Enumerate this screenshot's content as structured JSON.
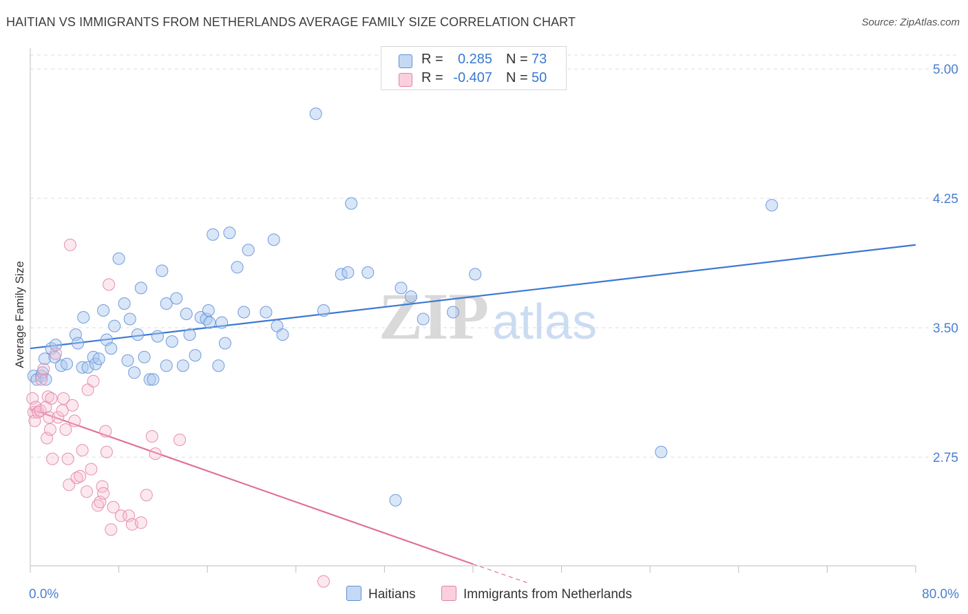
{
  "title": "HAITIAN VS IMMIGRANTS FROM NETHERLANDS AVERAGE FAMILY SIZE CORRELATION CHART",
  "source": "Source: ZipAtlas.com",
  "watermark": {
    "zip": "ZIP",
    "atlas": "atlas"
  },
  "legend": {
    "r_label": "R =",
    "n_label": "N =",
    "series": [
      {
        "r": "0.285",
        "n": "73",
        "fill": "#aac8f0",
        "stroke": "#5b8fd6"
      },
      {
        "r": "-0.407",
        "n": "50",
        "fill": "#f7bcd0",
        "stroke": "#e07fa2"
      }
    ]
  },
  "bottom_legend": [
    "Haitians",
    "Immigrants from Netherlands"
  ],
  "chart_data": {
    "type": "scatter",
    "title": "HAITIAN VS IMMIGRANTS FROM NETHERLANDS AVERAGE FAMILY SIZE CORRELATION CHART",
    "xlabel": "",
    "ylabel": "Average Family Size",
    "xlim": [
      0,
      80
    ],
    "ylim": [
      2.12,
      5.12
    ],
    "x_tick_labels": [
      "0.0%",
      "80.0%"
    ],
    "y_ticks": [
      2.75,
      3.5,
      4.25,
      5.0
    ],
    "y_tick_labels": [
      "2.75",
      "3.50",
      "4.25",
      "5.00"
    ],
    "grid": "horizontal dashed",
    "colors": {
      "haitians": "#3a78d2",
      "netherlands": "#e0709a",
      "tick_text": "#4a7fcf"
    },
    "series": [
      {
        "name": "Haitians",
        "r": 0.285,
        "n": 73,
        "trend": {
          "x": [
            0,
            80
          ],
          "y": [
            3.38,
            3.98
          ]
        },
        "points": [
          [
            0.3,
            3.22
          ],
          [
            0.6,
            3.2
          ],
          [
            1.0,
            3.22
          ],
          [
            1.1,
            3.24
          ],
          [
            1.3,
            3.32
          ],
          [
            1.4,
            3.2
          ],
          [
            1.9,
            3.38
          ],
          [
            2.2,
            3.33
          ],
          [
            2.3,
            3.4
          ],
          [
            2.8,
            3.28
          ],
          [
            3.3,
            3.29
          ],
          [
            4.1,
            3.46
          ],
          [
            4.3,
            3.41
          ],
          [
            4.7,
            3.27
          ],
          [
            4.8,
            3.56
          ],
          [
            5.2,
            3.27
          ],
          [
            5.7,
            3.33
          ],
          [
            5.9,
            3.29
          ],
          [
            6.2,
            3.32
          ],
          [
            6.6,
            3.6
          ],
          [
            6.9,
            3.43
          ],
          [
            7.3,
            3.38
          ],
          [
            7.6,
            3.51
          ],
          [
            8.0,
            3.9
          ],
          [
            8.5,
            3.64
          ],
          [
            8.8,
            3.31
          ],
          [
            9.0,
            3.55
          ],
          [
            9.4,
            3.24
          ],
          [
            9.7,
            3.46
          ],
          [
            10.0,
            3.73
          ],
          [
            10.3,
            3.33
          ],
          [
            10.8,
            3.2
          ],
          [
            11.1,
            3.2
          ],
          [
            11.5,
            3.45
          ],
          [
            11.9,
            3.83
          ],
          [
            12.3,
            3.64
          ],
          [
            12.3,
            3.28
          ],
          [
            12.8,
            3.42
          ],
          [
            13.2,
            3.67
          ],
          [
            13.8,
            3.28
          ],
          [
            14.1,
            3.58
          ],
          [
            14.4,
            3.46
          ],
          [
            14.9,
            3.34
          ],
          [
            15.4,
            3.56
          ],
          [
            15.9,
            3.55
          ],
          [
            16.1,
            3.6
          ],
          [
            16.2,
            3.53
          ],
          [
            16.5,
            4.04
          ],
          [
            17.0,
            3.28
          ],
          [
            17.3,
            3.53
          ],
          [
            17.6,
            3.41
          ],
          [
            18.0,
            4.05
          ],
          [
            18.7,
            3.85
          ],
          [
            19.3,
            3.59
          ],
          [
            19.7,
            3.95
          ],
          [
            21.3,
            3.59
          ],
          [
            22.0,
            4.01
          ],
          [
            22.3,
            3.51
          ],
          [
            22.8,
            3.46
          ],
          [
            25.8,
            4.74
          ],
          [
            26.5,
            3.6
          ],
          [
            28.1,
            3.81
          ],
          [
            28.7,
            3.82
          ],
          [
            29.0,
            4.22
          ],
          [
            30.5,
            3.82
          ],
          [
            33.0,
            2.5
          ],
          [
            33.5,
            3.73
          ],
          [
            34.4,
            3.68
          ],
          [
            35.5,
            3.55
          ],
          [
            38.2,
            3.59
          ],
          [
            40.2,
            3.81
          ],
          [
            67.0,
            4.21
          ],
          [
            57.0,
            2.78
          ]
        ]
      },
      {
        "name": "Immigrants from Netherlands",
        "r": -0.407,
        "n": 50,
        "trend": {
          "x": [
            0,
            40
          ],
          "y": [
            3.03,
            2.13
          ]
        },
        "trend_dashed": {
          "x": [
            40,
            45
          ],
          "y": [
            2.13,
            2.02
          ]
        },
        "points": [
          [
            0.2,
            3.09
          ],
          [
            0.3,
            3.01
          ],
          [
            0.4,
            2.96
          ],
          [
            0.5,
            3.04
          ],
          [
            0.7,
            3.01
          ],
          [
            0.9,
            3.02
          ],
          [
            1.0,
            3.2
          ],
          [
            1.2,
            3.26
          ],
          [
            1.4,
            3.04
          ],
          [
            1.5,
            2.86
          ],
          [
            1.6,
            3.1
          ],
          [
            1.7,
            2.98
          ],
          [
            1.8,
            2.91
          ],
          [
            1.9,
            3.09
          ],
          [
            2.0,
            2.74
          ],
          [
            2.3,
            3.35
          ],
          [
            2.5,
            2.98
          ],
          [
            2.9,
            3.02
          ],
          [
            3.0,
            3.09
          ],
          [
            3.2,
            2.91
          ],
          [
            3.4,
            2.74
          ],
          [
            3.5,
            2.59
          ],
          [
            3.6,
            3.98
          ],
          [
            3.8,
            3.05
          ],
          [
            4.0,
            2.96
          ],
          [
            4.2,
            2.63
          ],
          [
            4.5,
            2.64
          ],
          [
            4.7,
            2.79
          ],
          [
            5.1,
            2.55
          ],
          [
            5.2,
            3.14
          ],
          [
            5.5,
            2.68
          ],
          [
            5.7,
            3.19
          ],
          [
            6.1,
            2.47
          ],
          [
            6.3,
            2.49
          ],
          [
            6.5,
            2.58
          ],
          [
            6.6,
            2.54
          ],
          [
            6.8,
            2.9
          ],
          [
            6.9,
            2.78
          ],
          [
            7.1,
            3.75
          ],
          [
            7.3,
            2.33
          ],
          [
            7.5,
            2.46
          ],
          [
            8.2,
            2.41
          ],
          [
            8.9,
            2.41
          ],
          [
            9.2,
            2.36
          ],
          [
            10.0,
            2.37
          ],
          [
            10.5,
            2.53
          ],
          [
            11.0,
            2.87
          ],
          [
            11.3,
            2.77
          ],
          [
            13.5,
            2.85
          ],
          [
            26.5,
            2.03
          ]
        ]
      }
    ]
  }
}
